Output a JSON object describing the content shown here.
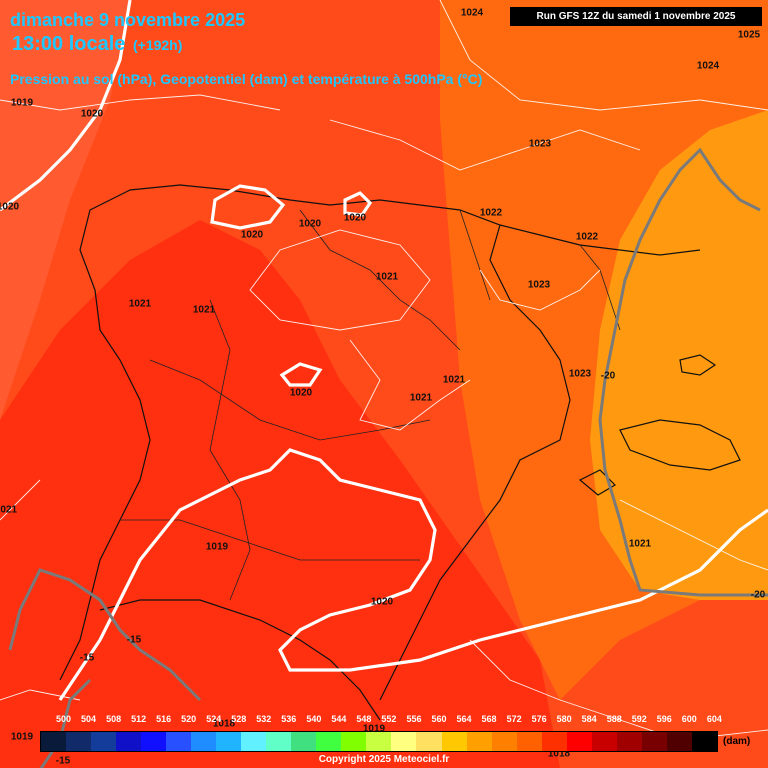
{
  "header": {
    "date": "dimanche 9 novembre 2025",
    "time_main": "13:00 locale",
    "lead": "(+192h)",
    "subtitle": "Pression au sol (hPa), Geopotentiel (dam) et température à 500hPa (°C)",
    "run": "Run GFS 12Z du samedi 1 novembre 2025"
  },
  "isobar_labels": [
    "1024",
    "1025",
    "1024",
    "1019",
    "1020",
    "1020",
    "1023",
    "1022",
    "1022",
    "1020",
    "1020",
    "1020",
    "1021",
    "1021",
    "1021",
    "1023",
    "1023",
    "1020",
    "1021",
    "1021",
    "1021",
    "1019",
    "1020",
    "1021",
    "1019",
    "1019",
    "1018",
    "1018"
  ],
  "temperature_labels": [
    "-20",
    "-20",
    "-15",
    "-15",
    "-15"
  ],
  "legend": {
    "values": [
      "500",
      "504",
      "508",
      "512",
      "516",
      "520",
      "524",
      "528",
      "532",
      "536",
      "540",
      "544",
      "548",
      "552",
      "556",
      "560",
      "564",
      "568",
      "572",
      "576",
      "580",
      "584",
      "588",
      "592",
      "596",
      "600",
      "604"
    ],
    "colors": [
      "#0a1a3a",
      "#102a6a",
      "#143c9a",
      "#1010c8",
      "#1010ff",
      "#2850ff",
      "#1f8cff",
      "#20b4ff",
      "#60f0ff",
      "#60ffc8",
      "#40e080",
      "#40ff40",
      "#80ff00",
      "#c8ff40",
      "#ffff80",
      "#ffe060",
      "#ffc800",
      "#ffa000",
      "#ff8000",
      "#ff6000",
      "#ff3000",
      "#ff0000",
      "#c80000",
      "#a00000",
      "#780000",
      "#500000",
      "#000000"
    ],
    "unit": "(dam)"
  },
  "copyright": "Copyright 2025 Meteociel.fr"
}
